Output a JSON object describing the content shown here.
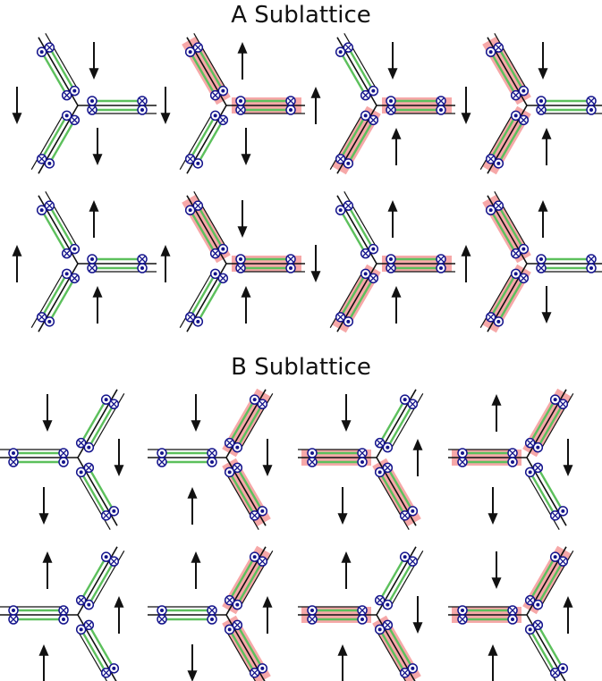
{
  "titles": {
    "a": "A Sublattice",
    "b": "B Sublattice"
  },
  "colors": {
    "bond": "#111111",
    "chain": "#5cc05c",
    "highlight": "#f6a8a8",
    "site": "#14148c",
    "arrow": "#111111"
  },
  "symbols": {
    "dot": "out-of-plane-dot",
    "cross": "into-plane-cross"
  },
  "sections": [
    {
      "name": "A Sublattice",
      "orientation": "left-open",
      "rows": [
        {
          "cells": [
            {
              "highlight": [],
              "arrows": [
                "down",
                "down",
                "down"
              ]
            },
            {
              "highlight": [
                "right",
                "up-left"
              ],
              "arrows": [
                "up",
                "down",
                "down"
              ]
            },
            {
              "highlight": [
                "right",
                "down-left"
              ],
              "arrows": [
                "down",
                "up",
                "up"
              ]
            },
            {
              "highlight": [
                "up-left",
                "down-left"
              ],
              "arrows": [
                "down",
                "down",
                "up"
              ]
            }
          ]
        },
        {
          "cells": [
            {
              "highlight": [],
              "arrows": [
                "up",
                "up",
                "up"
              ]
            },
            {
              "highlight": [
                "right",
                "up-left"
              ],
              "arrows": [
                "down",
                "up",
                "up"
              ]
            },
            {
              "highlight": [
                "right",
                "down-left"
              ],
              "arrows": [
                "up",
                "down",
                "up"
              ]
            },
            {
              "highlight": [
                "up-left",
                "down-left"
              ],
              "arrows": [
                "up",
                "up",
                "down"
              ]
            }
          ]
        }
      ]
    },
    {
      "name": "B Sublattice",
      "orientation": "right-open",
      "rows": [
        {
          "cells": [
            {
              "highlight": [],
              "arrows": [
                "down",
                "down",
                "down"
              ]
            },
            {
              "highlight": [
                "up-right",
                "down-right"
              ],
              "arrows": [
                "down",
                "down",
                "up"
              ]
            },
            {
              "highlight": [
                "left",
                "down-right"
              ],
              "arrows": [
                "down",
                "up",
                "down"
              ]
            },
            {
              "highlight": [
                "left",
                "up-right"
              ],
              "arrows": [
                "up",
                "down",
                "down"
              ]
            }
          ]
        },
        {
          "cells": [
            {
              "highlight": [],
              "arrows": [
                "up",
                "up",
                "up"
              ]
            },
            {
              "highlight": [
                "up-right",
                "down-right"
              ],
              "arrows": [
                "up",
                "up",
                "down"
              ]
            },
            {
              "highlight": [
                "left",
                "down-right"
              ],
              "arrows": [
                "up",
                "down",
                "up"
              ]
            },
            {
              "highlight": [
                "left",
                "up-right"
              ],
              "arrows": [
                "down",
                "up",
                "up"
              ]
            }
          ]
        }
      ]
    }
  ]
}
